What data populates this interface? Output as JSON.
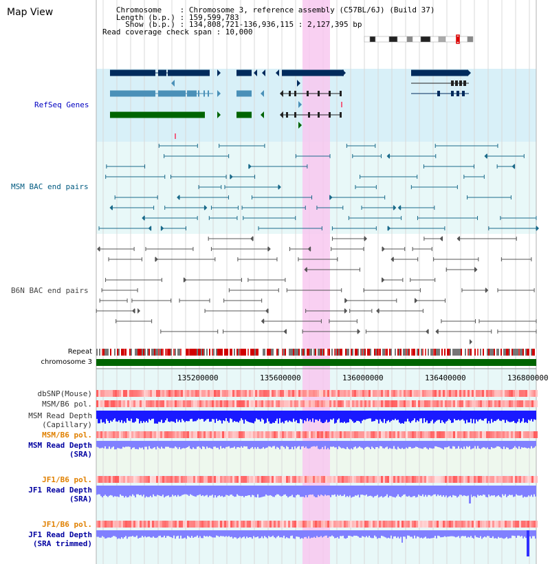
{
  "header": {
    "title": "Map View",
    "info_lines": [
      "   Chromosome    : Chromosome 3, reference assembly (C57BL/6J) (Build 37)",
      "   Length (b.p.) : 159,599,783",
      "     Show (b.p.) : 134,808,721-136,936,115 : 2,127,395 bp",
      "Read coverage check span : 10,000"
    ]
  },
  "tracks": {
    "refseq": {
      "label": "RefSeq Genes",
      "color": "#0000c0"
    },
    "msm_bac": {
      "label": "MSM BAC end pairs",
      "color": "#005a80"
    },
    "b6n_bac": {
      "label": "B6N BAC end pairs",
      "color": "#444444"
    },
    "repeat": {
      "label": "Repeat"
    },
    "chromosome": {
      "label": "chromosome 3"
    },
    "dbsnp": {
      "label": "dbSNP(Mouse)"
    },
    "msm_b6_pol": {
      "label": "MSM/B6 pol."
    },
    "msm_read_depth_cap": {
      "label_line1": "MSM Read Depth",
      "label_line2": "(Capillary)"
    },
    "msm_b6_pol_sra": {
      "label": "MSM/B6 pol.",
      "color": "#e08000"
    },
    "msm_read_depth_sra": {
      "label_line1": "MSM Read Depth",
      "label_line2": "(SRA)",
      "color": "#0000a0"
    },
    "jf1_b6_pol": {
      "label": "JF1/B6 pol.",
      "color": "#e08000"
    },
    "jf1_read_depth_sra": {
      "label_line1": "JF1 Read Depth",
      "label_line2": "(SRA)",
      "color": "#0000a0"
    },
    "jf1_b6_pol_trim": {
      "label": "JF1/B6 pol.",
      "color": "#e08000"
    },
    "jf1_read_depth_trim": {
      "label_line1": "JF1 Read Depth",
      "label_line2": "(SRA trimmed)",
      "color": "#0000a0"
    }
  },
  "axis": {
    "ticks": [
      "135200000",
      "135600000",
      "136000000",
      "136400000",
      "136800000"
    ]
  },
  "colors": {
    "highlight": "#f8c8f0",
    "refseq_bg": "#d8f0f8",
    "light_bg": "#e8f8f8",
    "gene_dark": "#002a5c",
    "gene_mid": "#4a90b8",
    "gene_green": "#006400",
    "msm_pair": "#1a6a8a",
    "b6n_pair": "#555555",
    "chromosome_bar": "#006400",
    "depth_blue": "#1a1aff",
    "depth_light": "#8080ff"
  }
}
